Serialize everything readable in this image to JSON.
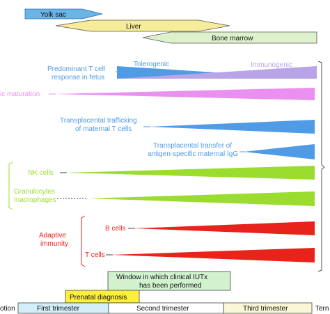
{
  "hematopoiesis": {
    "yolk_sac": "Yolk sac",
    "liver": "Liver",
    "bone_marrow": "Bone marrow"
  },
  "t_cell_response": {
    "label_line1": "Predominant T cell",
    "label_line2": "response in fetus",
    "tolerogenic": "Tolerogenic",
    "immunogenic": "Immunogenic"
  },
  "dc_maturation": {
    "label": "ic maturation"
  },
  "maternal_t_cells": {
    "label_line1": "Transplacental trafficking",
    "label_line2": "of maternal T cells"
  },
  "maternal_igg": {
    "label_line1": "Transplacental transfer of",
    "label_line2": "antigen-specific maternal IgG"
  },
  "innate": {
    "nk_cells": "NK cells",
    "granulocytes_line1": "Granulocytes",
    "granulocytes_line2": "macrophages"
  },
  "adaptive": {
    "label_line1": "Adaptive",
    "label_line2": "immunity",
    "b_cells": "B cells",
    "t_cells": "T cells"
  },
  "iutx_window": {
    "line1": "Window in which clinical IUTx",
    "line2": "has been performed"
  },
  "prenatal_diagnosis": "Prenatal diagnosis",
  "timeline": {
    "conception": "otion",
    "first_trimester": "First trimester",
    "second_trimester": "Second trimester",
    "third_trimester": "Third trimester",
    "term": "Tern"
  },
  "colors": {
    "yolk_sac": "#6ab4e8",
    "liver": "#f7ec9a",
    "bone_marrow": "#ddf2cc",
    "blue": "#4f9be6",
    "purple": "#b8a4e6",
    "pink": "#e990f0",
    "green": "#9bdd2f",
    "red": "#e8231b",
    "iutx": "#d2f2cf",
    "prenatal": "#fdf03a",
    "first_tri": "#d3eef9",
    "second_tri": "#ffffff",
    "third_tri": "#fbf7d5"
  }
}
